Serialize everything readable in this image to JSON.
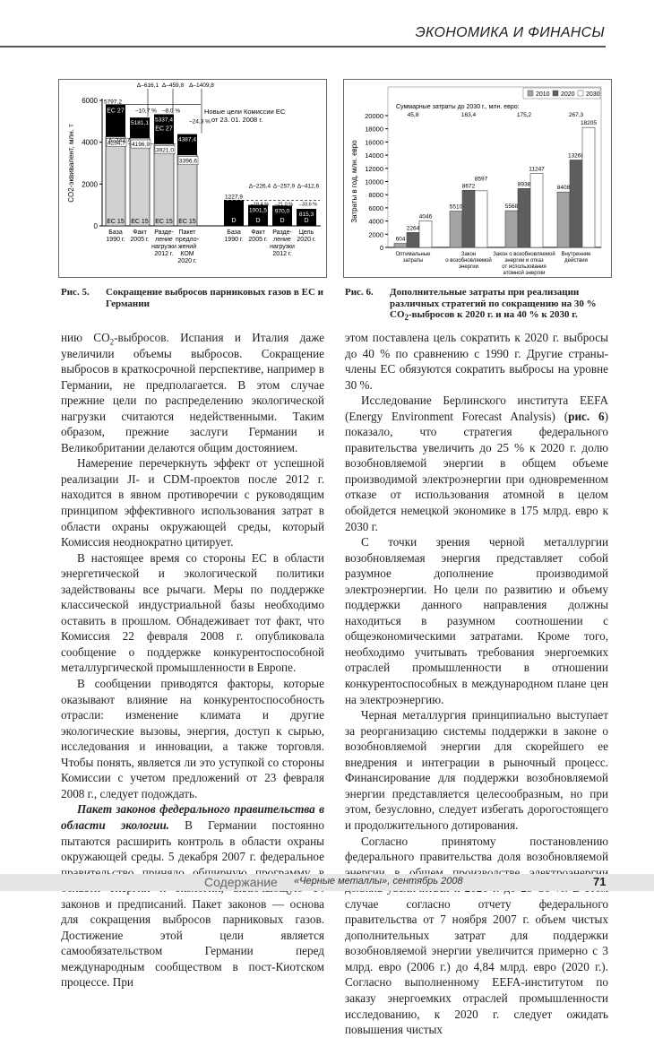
{
  "header": {
    "section": "ЭКОНОМИКА И ФИНАНСЫ"
  },
  "figures": [
    {
      "number": "Рис. 5.",
      "caption": "Сокращение выбросов парниковых газов в ЕС и Германии"
    },
    {
      "number": "Рис. 6.",
      "caption_parts": [
        "Дополнительные затраты при реализации различных стратегий по сокращению на 30 % CO",
        "2",
        "-выбросов к 2020 г. и на 40 % к 2030 г."
      ]
    }
  ],
  "chart_data": [
    {
      "type": "bar",
      "ylabel": "CO2-эквивалент, млн. т",
      "ylim": [
        0,
        6000
      ],
      "yticks": [
        "0",
        "2000",
        "4000",
        "6000"
      ],
      "note": [
        "Новые цели Комиссии ЕС",
        "от 23. 01. 2008 г."
      ],
      "eu": {
        "categories": [
          [
            "База",
            "1990 г."
          ],
          [
            "Факт",
            "2005 г."
          ],
          [
            "Разде-",
            "ление",
            "нагрузки",
            "2012 г."
          ],
          [
            "Пакет",
            "предло-",
            "жений",
            "КОМ",
            "2020 г."
          ]
        ],
        "ec15_label": "ЕС 15",
        "ec27_label": "ЕС 27",
        "ec15_values": [
          4264.7,
          4196.9,
          3921.0,
          3396.6
        ],
        "ec15_value_labels": [
          "4264,7",
          "4196,9",
          "3921,0",
          "3396,6"
        ],
        "ec27_values": [
          5797.2,
          5181.1,
          5337.4,
          4387.4
        ],
        "ec27_value_labels": [
          "5797,2",
          "5181,1",
          "5337,4",
          "4387,4"
        ],
        "base_delta": "Δ–343,7",
        "deltas": [
          "Δ–616,1",
          "Δ–459,8",
          "Δ–1409,8"
        ],
        "percents": [
          "–10,7 %",
          "–8,0 %",
          "–24,3 %"
        ]
      },
      "germany": {
        "categories": [
          [
            "База",
            "1990 г."
          ],
          [
            "Факт",
            "2005 г."
          ],
          [
            "Разде-",
            "ление",
            "нагрузки",
            "2012 г."
          ],
          [
            "Цель",
            "2020 г."
          ]
        ],
        "bar_label": "D",
        "values": [
          1227.9,
          1001.5,
          970.0,
          815.3
        ],
        "value_labels": [
          "1227,9",
          "1001,5",
          "970,0",
          "815,3"
        ],
        "deltas": [
          "Δ–226,4",
          "Δ–257,9",
          "Δ–412,6"
        ],
        "percents": [
          "–18,4 %",
          "–21,0 %",
          "–33,6 %"
        ]
      }
    },
    {
      "type": "bar",
      "ylabel": "Затраты в год, млн. евро",
      "ylim": [
        0,
        20000
      ],
      "yticks": [
        "0",
        "2000",
        "4000",
        "6000",
        "8000",
        "10000",
        "12000",
        "14000",
        "16000",
        "18000",
        "20000"
      ],
      "legend_position": "top-right",
      "categories": [
        [
          "Оптимальные",
          "затраты"
        ],
        [
          "Закон",
          "о возобновляемой",
          "энергии"
        ],
        [
          "Закон о возобновляемой",
          "энергии и отказ",
          "от использования",
          "атомной энергии"
        ],
        [
          "Внутренние",
          "действия"
        ]
      ],
      "series": [
        {
          "name": "2010",
          "color": "#a3a3a3",
          "values": [
            604,
            5510,
            5568,
            8408
          ]
        },
        {
          "name": "2020",
          "color": "#5e5e5e",
          "values": [
            2264,
            8672,
            8938,
            13268
          ]
        },
        {
          "name": "2030",
          "color": "#ffffff",
          "values": [
            4046,
            8597,
            11247,
            18205
          ]
        }
      ],
      "totals_label": "Суммарные затраты до 2030 г., млн. евро:",
      "totals": [
        "45,8",
        "163,4",
        "175,2",
        "267,3"
      ]
    }
  ],
  "left_column": [
    {
      "cont": true,
      "parts": [
        {
          "t": "нию CO"
        },
        {
          "t": "2",
          "sub": true
        },
        {
          "t": "-выбросов. Испания и Италия даже увеличили объемы выбросов. Сокращение выбросов в краткосрочной перспективе, например в Германии, не предполагается. В этом случае прежние цели по распределению экологической нагрузки считаются недейственными. Таким образом, прежние заслуги Германии и Великобритании делаются общим достоянием."
        }
      ]
    },
    {
      "parts": [
        {
          "t": "Намерение перечеркнуть эффект от успешной реализации JI- и CDM-проектов после 2012 г. находится в явном противоречии с руководящим принципом эффективного использования затрат в области охраны окружающей среды, который Комиссия неоднократно цитирует."
        }
      ]
    },
    {
      "parts": [
        {
          "t": "В настоящее время со стороны ЕС в области энергетической и экологической политики задействованы все рычаги. Меры по поддержке классической индустриальной базы необходимо оставить в прошлом. Обнадеживает тот факт, что Комиссия 22 февраля 2008 г. опубликовала сообщение о поддержке конкурентоспособной металлургической промышленности в Европе."
        }
      ]
    },
    {
      "parts": [
        {
          "t": "В сообщении приводятся факторы, которые оказывают влияние на конкурентоспособность отрасли: изменение климата и другие экологические вызовы, энергия, доступ к сырью, исследования и инновации, а также торговля. Чтобы понять, является ли это уступкой со стороны Комиссии с учетом предложений от 23 февраля 2008 г., следует подождать."
        }
      ]
    },
    {
      "parts": [
        {
          "t": "Пакет законов федерального правительства в области экологии.",
          "bi": true
        },
        {
          "t": " В Германии постоянно пытаются расширить контроль в области охраны окружающей среды. 5 декабря 2007 г. федеральное правительство приняло обширную программу в области энергии и экологии, включающую 14 законов и предписаний. Пакет законов — основа для сокращения выбросов парниковых газов. Достижение этой цели является самообязательством Германии перед международным сообществом в пост-Киотском процессе. При"
        }
      ]
    }
  ],
  "right_column": [
    {
      "cont": true,
      "parts": [
        {
          "t": "этом поставлена цель сократить к 2020 г. выбросы до 40 % по сравнению с 1990 г. Другие страны-члены ЕС обязуются сократить выбросы на уровне 30 %."
        }
      ]
    },
    {
      "parts": [
        {
          "t": "Исследование Берлинского института EEFA (Energy Environment Forecast Analysis) ("
        },
        {
          "t": "рис. 6",
          "b": true
        },
        {
          "t": ") показало, что стратегия федерального правительства увеличить до 25 % к 2020 г. долю возобновляемой энергии в общем объеме производимой электроэнергии при одновременном отказе от использования атомной в целом обойдется немецкой экономике в 175 млрд. евро к 2030 г."
        }
      ]
    },
    {
      "parts": [
        {
          "t": "С точки зрения черной металлургии возобновляемая энергия представляет собой разумное дополнение производимой электроэнергии. Но цели по развитию и объему поддержки данного направления должны находиться в разумном соотношении с общеэкономическими затратами. Кроме того, необходимо учитывать требования энергоемких отраслей промышленности в отношении конкурентоспособных в международном плане цен на электроэнергию."
        }
      ]
    },
    {
      "parts": [
        {
          "t": "Черная металлургия принципиально выступает за реорганизацию системы поддержки в законе о возобновляемой энергии для скорейшего ее внедрения и интеграции в рыночный процесс. Финансирование для поддержки возобновляемой энергии представляется целесообразным, но при этом, безусловно, следует избегать дорогостоящего и продолжительного дотирования."
        }
      ]
    },
    {
      "parts": [
        {
          "t": "Согласно принятому постановлению федерального правительства доля возобновляемой энергии в общем производстве электроэнергии должна увеличиться к 2020 г. до 25–30 %. В этом случае согласно отчету федерального правительства от 7 ноября 2007 г. объем чистых дополнительных затрат для поддержки возобновляемой энергии увеличится примерно с 3 млрд. евро (2006 г.) до 4,84 млрд. евро (2020 г.). Согласно выполненному EEFA-институтом по заказу энергоемких отраслей промышленности исследованию, к 2020 г. следует ожидать повышения чистых"
        }
      ]
    }
  ],
  "footer": {
    "contents_link": "Содержание",
    "magazine": "«Черные металлы», сентябрь 2008",
    "page": "71"
  }
}
